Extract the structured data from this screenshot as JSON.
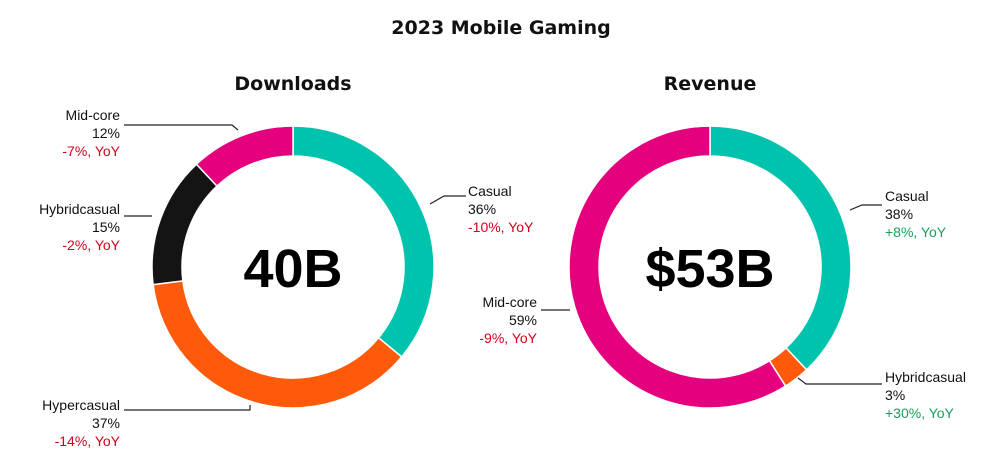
{
  "chart_data": {
    "type": "pie",
    "title": "2023 Mobile Gaming",
    "colors": {
      "Casual": "#00c3ad",
      "Hypercasual": "#ff5a0a",
      "Hybridcasual_downloads": "#141414",
      "Hybridcasual_revenue": "#ff5a0a",
      "Mid-core": "#e5007e",
      "negative": "#d0021b",
      "positive": "#1a9e5a"
    },
    "charts": [
      {
        "subtitle": "Downloads",
        "center_label": "40B",
        "slices": [
          {
            "name": "Casual",
            "value": 36,
            "pct_label": "36%",
            "yoy": "-10%, YoY",
            "yoy_sign": "negative",
            "color": "#00c3ad"
          },
          {
            "name": "Hypercasual",
            "value": 37,
            "pct_label": "37%",
            "yoy": "-14%, YoY",
            "yoy_sign": "negative",
            "color": "#ff5a0a"
          },
          {
            "name": "Hybridcasual",
            "value": 15,
            "pct_label": "15%",
            "yoy": "-2%, YoY",
            "yoy_sign": "negative",
            "color": "#141414"
          },
          {
            "name": "Mid-core",
            "value": 12,
            "pct_label": "12%",
            "yoy": "-7%, YoY",
            "yoy_sign": "negative",
            "color": "#e5007e"
          }
        ]
      },
      {
        "subtitle": "Revenue",
        "center_label": "$53B",
        "slices": [
          {
            "name": "Casual",
            "value": 38,
            "pct_label": "38%",
            "yoy": "+8%, YoY",
            "yoy_sign": "positive",
            "color": "#00c3ad"
          },
          {
            "name": "Hybridcasual",
            "value": 3,
            "pct_label": "3%",
            "yoy": "+30%, YoY",
            "yoy_sign": "positive",
            "color": "#ff5a0a"
          },
          {
            "name": "Mid-core",
            "value": 59,
            "pct_label": "59%",
            "yoy": "-9%, YoY",
            "yoy_sign": "negative",
            "color": "#e5007e"
          }
        ]
      }
    ]
  }
}
